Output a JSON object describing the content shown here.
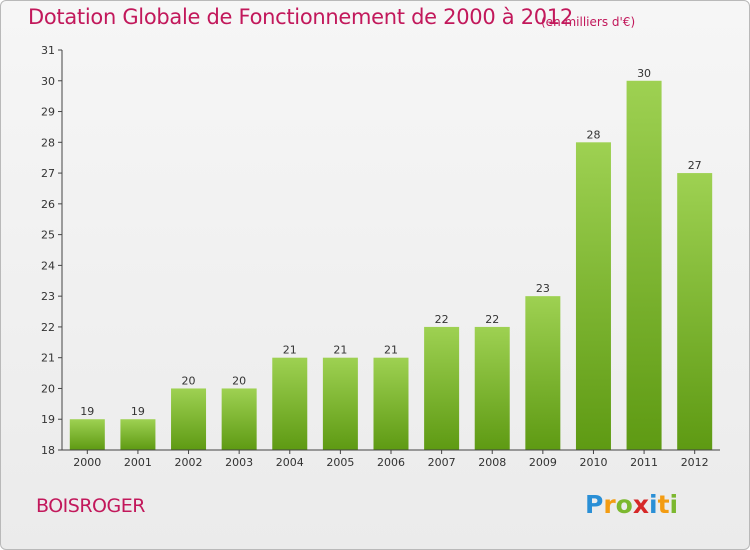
{
  "header": {
    "title": "Dotation Globale de Fonctionnement de 2000 à 2012",
    "unit": "(en milliers d'€)"
  },
  "footer": {
    "commune": "BOISROGER",
    "logo": "Proxiti",
    "logo_letters": [
      {
        "ch": "P",
        "color": "#2a8fd6"
      },
      {
        "ch": "r",
        "color": "#f39c12"
      },
      {
        "ch": "o",
        "color": "#7cb82f"
      },
      {
        "ch": "x",
        "color": "#d62828"
      },
      {
        "ch": "i",
        "color": "#2a8fd6"
      },
      {
        "ch": "t",
        "color": "#f39c12"
      },
      {
        "ch": "i",
        "color": "#7cb82f"
      }
    ]
  },
  "chart_data": {
    "type": "bar",
    "title": "Dotation Globale de Fonctionnement de 2000 à 2012",
    "subtitle": "(en milliers d'€)",
    "categories": [
      "2000",
      "2001",
      "2002",
      "2003",
      "2004",
      "2005",
      "2006",
      "2007",
      "2008",
      "2009",
      "2010",
      "2011",
      "2012"
    ],
    "values": [
      19,
      19,
      20,
      20,
      21,
      21,
      21,
      22,
      22,
      23,
      28,
      30,
      27
    ],
    "ylim": [
      18,
      31
    ],
    "yticks": [
      18,
      19,
      20,
      21,
      22,
      23,
      24,
      25,
      26,
      27,
      28,
      29,
      30,
      31
    ],
    "xlabel": "",
    "ylabel": "",
    "grid": false,
    "colors": {
      "bar_top": "#9ed152",
      "bar_bottom": "#5e9a13",
      "axis": "#444444",
      "text_accent": "#c2185b"
    }
  }
}
